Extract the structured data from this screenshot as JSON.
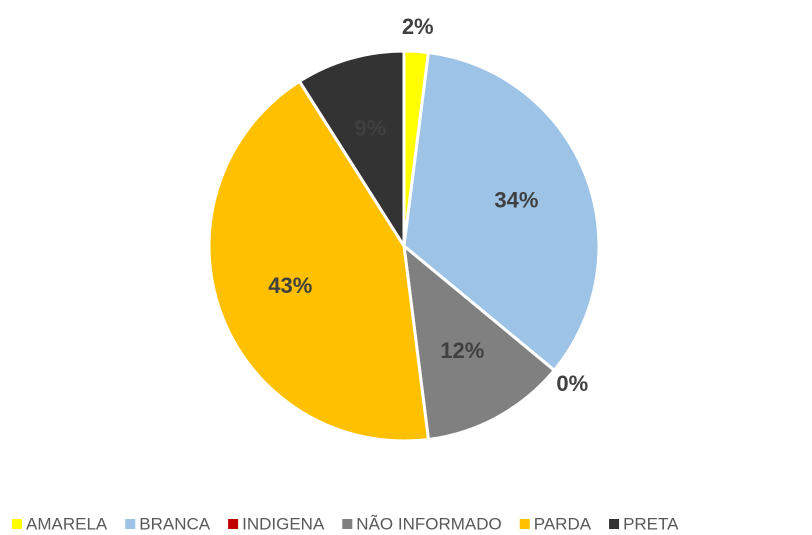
{
  "chart_data": {
    "type": "pie",
    "categories": [
      "AMARELA",
      "BRANCA",
      "INDIGENA",
      "NÃO INFORMADO",
      "PARDA",
      "PRETA"
    ],
    "values": [
      2,
      34,
      0,
      12,
      43,
      9
    ],
    "value_labels": [
      "2%",
      "34%",
      "0%",
      "12%",
      "43%",
      "9%"
    ],
    "colors": [
      "#ffff00",
      "#9dc3e6",
      "#c00000",
      "#808080",
      "#ffc000",
      "#333333"
    ],
    "legend": "bottom"
  }
}
